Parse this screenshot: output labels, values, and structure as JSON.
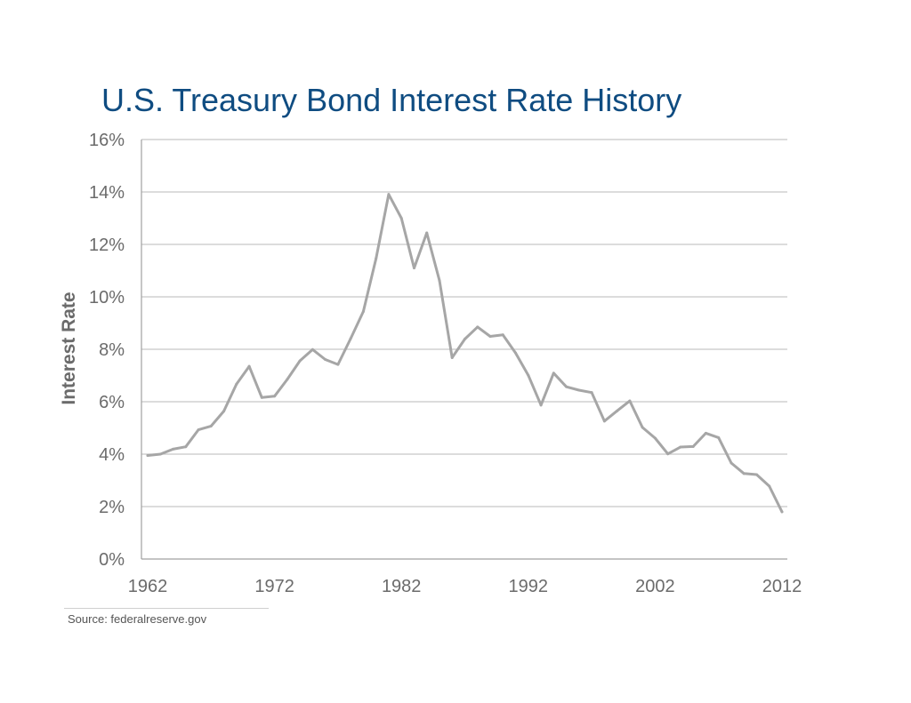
{
  "chart_data": {
    "type": "line",
    "title": "U.S. Treasury Bond Interest Rate History",
    "xlabel": "",
    "ylabel": "Interest Rate",
    "xlim": [
      1962,
      2012
    ],
    "ylim": [
      0,
      16
    ],
    "x_ticks": [
      1962,
      1972,
      1982,
      1992,
      2002,
      2012
    ],
    "x_tick_labels": [
      "1962",
      "1972",
      "1982",
      "1992",
      "2002",
      "2012"
    ],
    "y_ticks": [
      0,
      2,
      4,
      6,
      8,
      10,
      12,
      14,
      16
    ],
    "y_tick_labels": [
      "0%",
      "2%",
      "4%",
      "6%",
      "8%",
      "10%",
      "12%",
      "14%",
      "16%"
    ],
    "grid": "horizontal",
    "line_color": "#a6a6a6",
    "series": [
      {
        "x": [
          1962,
          1963,
          1964,
          1965,
          1966,
          1967,
          1968,
          1969,
          1970,
          1971,
          1972,
          1973,
          1974,
          1975,
          1976,
          1977,
          1978,
          1979,
          1980,
          1981,
          1982,
          1983,
          1984,
          1985,
          1986,
          1987,
          1988,
          1989,
          1990,
          1991,
          1992,
          1993,
          1994,
          1995,
          1996,
          1997,
          1998,
          1999,
          2000,
          2001,
          2002,
          2003,
          2004,
          2005,
          2006,
          2007,
          2008,
          2009,
          2010,
          2011,
          2012
        ],
        "values": [
          3.95,
          4.0,
          4.19,
          4.28,
          4.93,
          5.07,
          5.64,
          6.67,
          7.35,
          6.16,
          6.21,
          6.85,
          7.56,
          7.99,
          7.61,
          7.42,
          8.41,
          9.44,
          11.46,
          13.91,
          13.0,
          11.1,
          12.44,
          10.62,
          7.68,
          8.39,
          8.85,
          8.49,
          8.55,
          7.86,
          7.01,
          5.87,
          7.09,
          6.57,
          6.44,
          6.35,
          5.26,
          5.65,
          6.03,
          5.02,
          4.61,
          4.01,
          4.27,
          4.29,
          4.8,
          4.63,
          3.66,
          3.26,
          3.22,
          2.78,
          1.8
        ]
      }
    ]
  },
  "source": "Source: federalreserve.gov"
}
